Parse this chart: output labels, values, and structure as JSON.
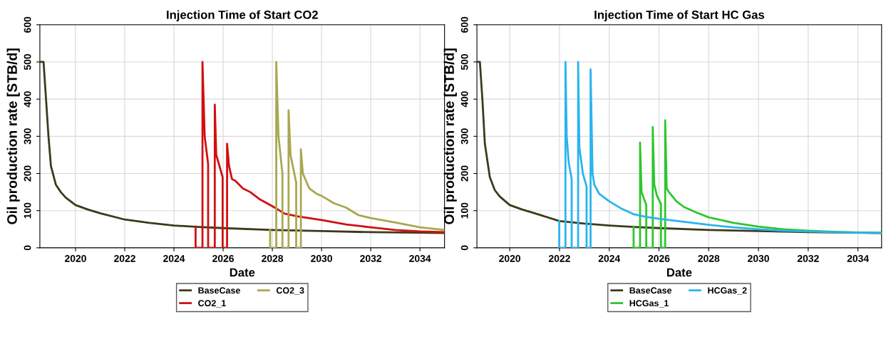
{
  "chart_data": [
    {
      "type": "line",
      "title": "Injection Time of Start CO2",
      "xlabel": "Date",
      "ylabel": "Oil production rate [STB/d]",
      "xlim": [
        2018.55,
        2035
      ],
      "xticks": [
        2020,
        2022,
        2024,
        2026,
        2028,
        2030,
        2032,
        2034
      ],
      "ylim": [
        0,
        600
      ],
      "yticks": [
        0,
        100,
        200,
        300,
        400,
        500,
        600
      ],
      "grid": true,
      "legend": "bottom",
      "series": [
        {
          "name": "BaseCase",
          "color": "#3d3a1a",
          "x": [
            2018.56,
            2018.7,
            2018.8,
            2018.9,
            2019.0,
            2019.2,
            2019.4,
            2019.6,
            2020,
            2020.5,
            2021,
            2022,
            2023,
            2024,
            2025,
            2026,
            2028,
            2030,
            2032,
            2035
          ],
          "values": [
            500,
            500,
            400,
            300,
            220,
            170,
            150,
            135,
            115,
            103,
            93,
            76,
            67,
            60,
            56,
            53,
            48,
            45,
            42,
            40
          ]
        },
        {
          "name": "CO2_1",
          "color": "#d01010",
          "x": [
            2024.88,
            2024.88,
            2025.16,
            2025.16,
            2025.25,
            2025.39,
            2025.39,
            2025.66,
            2025.66,
            2025.72,
            2025.98,
            2025.98,
            2026.16,
            2026.16,
            2026.24,
            2026.36,
            2026.5,
            2026.8,
            2027.1,
            2027.5,
            2028,
            2028.5,
            2029,
            2030,
            2031,
            2032,
            2033,
            2034,
            2035
          ],
          "values": [
            57,
            0,
            0,
            500,
            300,
            225,
            0,
            0,
            385,
            250,
            190,
            0,
            0,
            280,
            220,
            185,
            180,
            160,
            150,
            130,
            112,
            92,
            85,
            75,
            63,
            55,
            48,
            44,
            42
          ]
        },
        {
          "name": "CO2_3",
          "color": "#a8a850",
          "x": [
            2027.91,
            2027.91,
            2028.16,
            2028.16,
            2028.25,
            2028.41,
            2028.41,
            2028.66,
            2028.66,
            2028.74,
            2028.97,
            2028.97,
            2029.16,
            2029.16,
            2029.24,
            2029.5,
            2029.8,
            2030,
            2030.5,
            2031,
            2031.5,
            2032,
            2033,
            2034,
            2035
          ],
          "values": [
            48,
            0,
            0,
            500,
            300,
            200,
            0,
            0,
            370,
            250,
            175,
            0,
            0,
            265,
            200,
            160,
            145,
            140,
            120,
            108,
            88,
            80,
            68,
            55,
            48
          ]
        }
      ]
    },
    {
      "type": "line",
      "title": "Injection Time of Start HC Gas",
      "xlabel": "Date",
      "ylabel": "Oil production rate [STB/d]",
      "xlim": [
        2018.68,
        2034.95
      ],
      "xticks": [
        2020,
        2022,
        2024,
        2026,
        2028,
        2030,
        2032,
        2034
      ],
      "ylim": [
        0,
        600
      ],
      "yticks": [
        0,
        100,
        200,
        300,
        400,
        500,
        600
      ],
      "grid": true,
      "legend": "bottom",
      "series": [
        {
          "name": "BaseCase",
          "color": "#3d3a1a",
          "x": [
            2018.69,
            2018.8,
            2018.9,
            2019.0,
            2019.2,
            2019.4,
            2019.6,
            2020,
            2020.5,
            2021,
            2022,
            2023,
            2024,
            2025,
            2026,
            2028,
            2030,
            2032,
            2034.95
          ],
          "values": [
            500,
            500,
            400,
            280,
            190,
            155,
            138,
            115,
            103,
            93,
            72,
            65,
            60,
            56,
            53,
            48,
            45,
            42,
            40
          ]
        },
        {
          "name": "HCGas_1",
          "color": "#2ec62e",
          "x": [
            2024.98,
            2024.98,
            2025.24,
            2025.24,
            2025.3,
            2025.49,
            2025.49,
            2025.75,
            2025.75,
            2025.81,
            2025.92,
            2026.08,
            2026.08,
            2026.25,
            2026.25,
            2026.31,
            2026.4,
            2026.7,
            2027,
            2027.5,
            2028,
            2029,
            2030,
            2031,
            2032,
            2033,
            2034.95
          ],
          "values": [
            57,
            0,
            0,
            283,
            150,
            115,
            0,
            0,
            325,
            170,
            140,
            118,
            0,
            0,
            343,
            160,
            150,
            125,
            110,
            95,
            82,
            67,
            57,
            50,
            46,
            43,
            40
          ]
        },
        {
          "name": "HCGas_2",
          "color": "#2ab4ee",
          "x": [
            2021.99,
            2021.99,
            2022.24,
            2022.24,
            2022.29,
            2022.37,
            2022.49,
            2022.49,
            2022.75,
            2022.75,
            2022.8,
            2022.94,
            2023.09,
            2023.09,
            2023.25,
            2023.25,
            2023.33,
            2023.4,
            2023.6,
            2024,
            2024.5,
            2025,
            2025.5,
            2026,
            2027,
            2028,
            2029,
            2030,
            2031,
            2032,
            2033,
            2034.95
          ],
          "values": [
            72,
            0,
            0,
            500,
            300,
            230,
            185,
            0,
            0,
            500,
            270,
            200,
            165,
            0,
            0,
            480,
            200,
            170,
            145,
            125,
            105,
            90,
            83,
            78,
            70,
            62,
            55,
            50,
            46,
            44,
            42,
            40
          ]
        }
      ]
    }
  ]
}
